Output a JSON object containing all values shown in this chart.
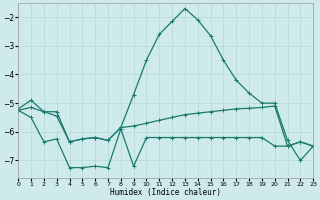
{
  "xlabel": "Humidex (Indice chaleur)",
  "x": [
    0,
    1,
    2,
    3,
    4,
    5,
    6,
    7,
    8,
    9,
    10,
    11,
    12,
    13,
    14,
    15,
    16,
    17,
    18,
    19,
    20,
    21,
    22,
    23
  ],
  "line_top": [
    -5.2,
    -4.9,
    -5.3,
    -5.45,
    -6.35,
    -6.25,
    -6.2,
    -6.3,
    -5.85,
    -4.7,
    -3.5,
    -2.6,
    -2.15,
    -1.7,
    -2.1,
    -2.65,
    -3.5,
    -4.2,
    -4.65,
    -5.0,
    -5.0,
    -6.3,
    -7.0,
    -6.5
  ],
  "line_mid": [
    -5.25,
    -5.15,
    -5.3,
    -5.3,
    -6.35,
    -6.25,
    -6.2,
    -6.3,
    -5.85,
    -5.8,
    -5.7,
    -5.6,
    -5.5,
    -5.4,
    -5.35,
    -5.3,
    -5.25,
    -5.2,
    -5.18,
    -5.15,
    -5.1,
    -6.5,
    -6.35,
    -6.5
  ],
  "line_bot": [
    -5.25,
    -5.5,
    -6.35,
    -6.25,
    -7.25,
    -7.25,
    -7.2,
    -7.25,
    -5.9,
    -7.2,
    -6.2,
    -6.2,
    -6.2,
    -6.2,
    -6.2,
    -6.2,
    -6.2,
    -6.2,
    -6.2,
    -6.2,
    -6.5,
    -6.5,
    -6.35,
    -6.5
  ],
  "bg_color": "#ceeaea",
  "grid_color": "#b8d8d8",
  "line_color": "#1a7a6e",
  "ylim": [
    -7.6,
    -1.5
  ],
  "yticks": [
    -7,
    -6,
    -5,
    -4,
    -3,
    -2
  ],
  "xlim": [
    0,
    23
  ],
  "xticks": [
    0,
    1,
    2,
    3,
    4,
    5,
    6,
    7,
    8,
    9,
    10,
    11,
    12,
    13,
    14,
    15,
    16,
    17,
    18,
    19,
    20,
    21,
    22,
    23
  ]
}
